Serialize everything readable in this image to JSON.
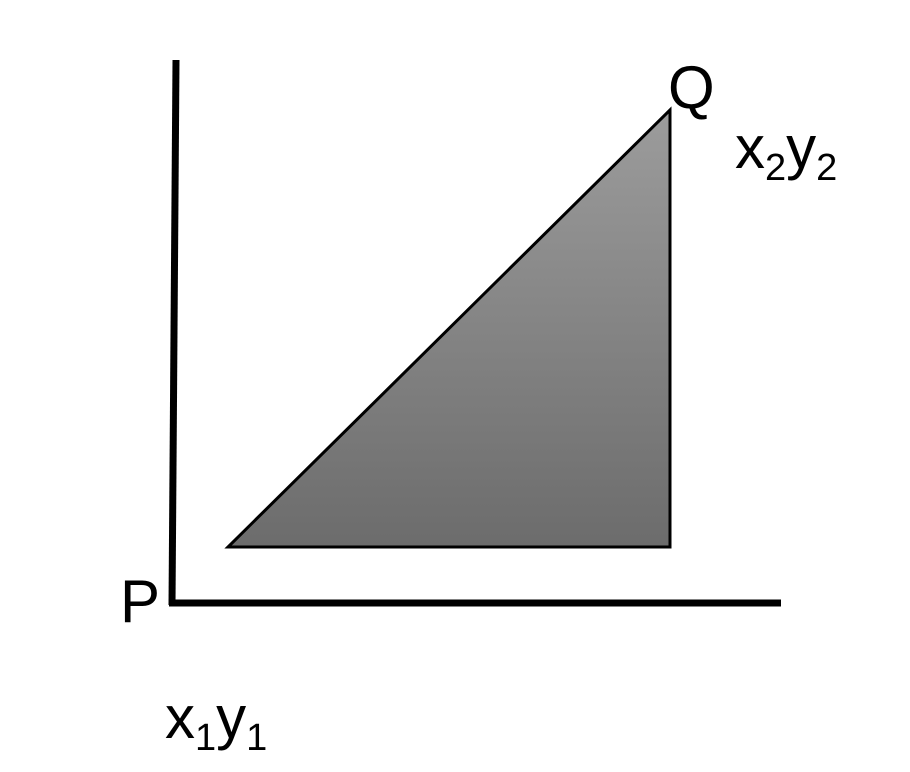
{
  "diagram": {
    "point_p": {
      "label": "P",
      "coord_x": "x",
      "coord_x_sub": "1",
      "coord_y": "y",
      "coord_y_sub": "1"
    },
    "point_q": {
      "label": "Q",
      "coord_x": "x",
      "coord_x_sub": "2",
      "coord_y": "y",
      "coord_y_sub": "2"
    },
    "colors": {
      "axes": "#000000",
      "triangle_stroke": "#000000",
      "triangle_fill_top": "#9c9c9c",
      "triangle_fill_bottom": "#6c6c6c"
    }
  }
}
